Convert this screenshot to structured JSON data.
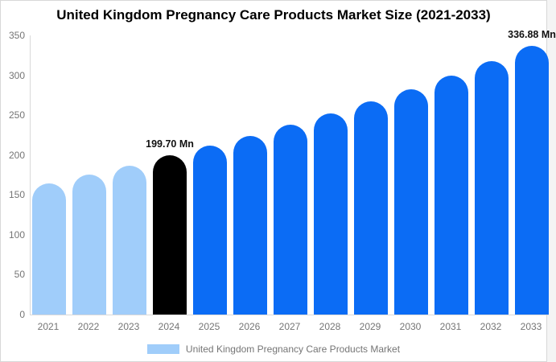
{
  "title": "United Kingdom Pregnancy Care Products Market Size (2021-2033)",
  "legend": {
    "label": "United Kingdom Pregnancy Care Products Market"
  },
  "colors": {
    "historical": "#A0CDFA",
    "current": "#000000",
    "forecast": "#0B6CF5",
    "axis": "#D9D9D9",
    "tick_text": "#757575",
    "annotation_text": "#111111"
  },
  "chart_data": {
    "type": "bar",
    "title": "United Kingdom Pregnancy Care Products Market Size (2021-2033)",
    "xlabel": "",
    "ylabel": "",
    "ylim": [
      0,
      350
    ],
    "yticks": [
      0,
      50,
      100,
      150,
      200,
      250,
      300,
      350
    ],
    "grid": false,
    "legend_position": "bottom-center",
    "categories": [
      "2021",
      "2022",
      "2023",
      "2024",
      "2025",
      "2026",
      "2027",
      "2028",
      "2029",
      "2030",
      "2031",
      "2032",
      "2033"
    ],
    "values": [
      164.5,
      176.0,
      187.0,
      199.7,
      211.6,
      224.3,
      237.6,
      251.8,
      266.9,
      282.8,
      299.7,
      317.9,
      336.88
    ],
    "segments": [
      "historical",
      "historical",
      "historical",
      "current",
      "forecast",
      "forecast",
      "forecast",
      "forecast",
      "forecast",
      "forecast",
      "forecast",
      "forecast",
      "forecast"
    ],
    "annotations": [
      {
        "year": "2024",
        "text": "199.70 Mn"
      },
      {
        "year": "2033",
        "text": "336.88 Mn"
      }
    ],
    "units": "Mn"
  }
}
